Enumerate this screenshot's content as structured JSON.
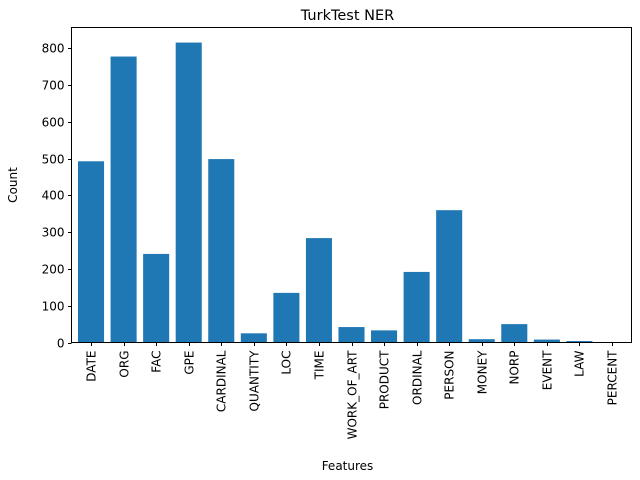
{
  "chart_data": {
    "type": "bar",
    "title": "TurkTest NER",
    "xlabel": "Features",
    "ylabel": "Count",
    "categories": [
      "DATE",
      "ORG",
      "FAC",
      "GPE",
      "CARDINAL",
      "QUANTITY",
      "LOC",
      "TIME",
      "WORK_OF_ART",
      "PRODUCT",
      "ORDINAL",
      "PERSON",
      "MONEY",
      "NORP",
      "EVENT",
      "LAW",
      "PERCENT"
    ],
    "values": [
      493,
      778,
      241,
      816,
      499,
      25,
      135,
      284,
      42,
      33,
      192,
      360,
      9,
      50,
      8,
      4,
      1
    ],
    "ylim": [
      0,
      857
    ],
    "yticks": [
      0,
      100,
      200,
      300,
      400,
      500,
      600,
      700,
      800
    ],
    "bar_color": "#1f77b4",
    "grid": false,
    "legend": "none"
  }
}
